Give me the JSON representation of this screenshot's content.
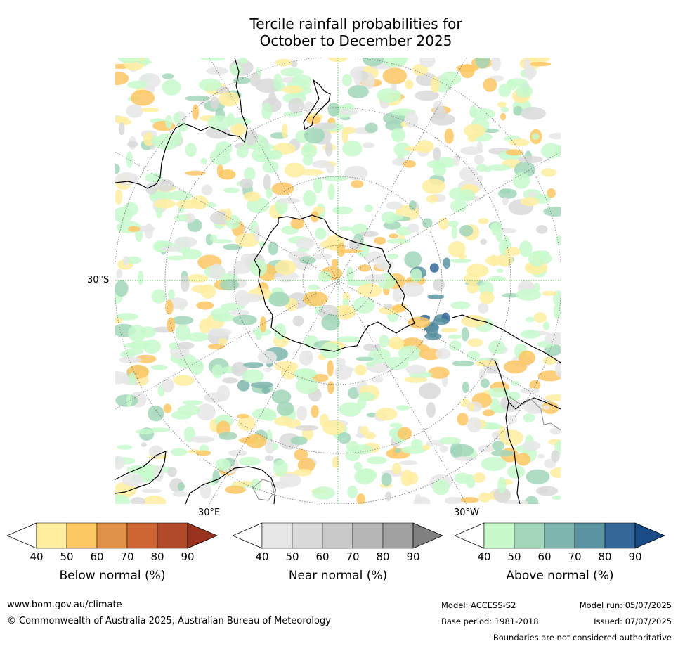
{
  "title_line1": "Tercile rainfall probabilities for",
  "title_line2": "October to December 2025",
  "map_labels": {
    "lat": "30°S",
    "lon_east": "30°E",
    "lon_west": "30°W"
  },
  "legend": {
    "below": {
      "caption": "Below normal (%)",
      "ticks": [
        "40",
        "50",
        "60",
        "70",
        "80",
        "90"
      ],
      "colors": [
        "#ffffff",
        "#ffeda0",
        "#fdc763",
        "#e09147",
        "#cc6533",
        "#b04a2a",
        "#993320"
      ]
    },
    "near": {
      "caption": "Near normal (%)",
      "ticks": [
        "40",
        "50",
        "60",
        "70",
        "80",
        "90"
      ],
      "colors": [
        "#ffffff",
        "#e6e6e6",
        "#d9d9d9",
        "#c8c8c8",
        "#b5b5b5",
        "#a1a1a1",
        "#808080"
      ]
    },
    "above": {
      "caption": "Above normal (%)",
      "ticks": [
        "40",
        "50",
        "60",
        "70",
        "80",
        "90"
      ],
      "colors": [
        "#ffffff",
        "#c7f9cb",
        "#a2d6b8",
        "#7eb5ad",
        "#5b93a1",
        "#356799",
        "#1a4d87"
      ]
    }
  },
  "footer": {
    "url": "www.bom.gov.au/climate",
    "copyright": "© Commonwealth of Australia 2025, Australian Bureau of Meteorology",
    "model": "Model: ACCESS-S2",
    "base_period": "Base period: 1981-2018",
    "model_run": "Model run: 05/07/2025",
    "issued": "Issued: 07/07/2025",
    "disclaimer": "Boundaries are not considered authoritative"
  }
}
